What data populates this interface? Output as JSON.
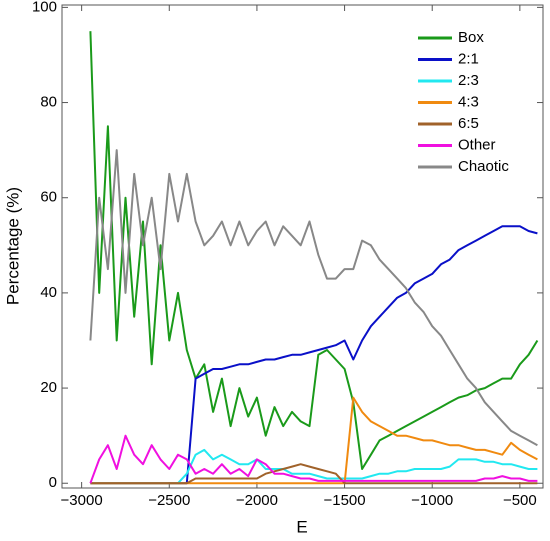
{
  "chart_data": {
    "type": "line",
    "xlabel": "E",
    "ylabel": "Percentage (%)",
    "x": [
      -2950,
      -2900,
      -2850,
      -2800,
      -2750,
      -2700,
      -2650,
      -2600,
      -2550,
      -2500,
      -2450,
      -2400,
      -2350,
      -2300,
      -2250,
      -2200,
      -2150,
      -2100,
      -2050,
      -2000,
      -1950,
      -1900,
      -1850,
      -1800,
      -1750,
      -1700,
      -1650,
      -1600,
      -1550,
      -1500,
      -1450,
      -1400,
      -1350,
      -1300,
      -1250,
      -1200,
      -1150,
      -1100,
      -1050,
      -1000,
      -950,
      -900,
      -850,
      -800,
      -750,
      -700,
      -650,
      -600,
      -550,
      -500,
      -450,
      -400
    ],
    "series": [
      {
        "name": "Box",
        "color": "#1a9a1a",
        "values": [
          95,
          40,
          75,
          30,
          60,
          35,
          55,
          25,
          50,
          30,
          40,
          28,
          22,
          25,
          15,
          22,
          12,
          20,
          14,
          18,
          10,
          16,
          12,
          15,
          13,
          12,
          27,
          28,
          26,
          24,
          17,
          3,
          6,
          9,
          10,
          11,
          12,
          13,
          14,
          15,
          16,
          17,
          18,
          18.5,
          19.5,
          20,
          21,
          22,
          22,
          25,
          27,
          30
        ]
      },
      {
        "name": "2:1",
        "color": "#0a10c8",
        "values": [
          0,
          0,
          0,
          0,
          0,
          0,
          0,
          0,
          0,
          0,
          0,
          0,
          22,
          23,
          24,
          24,
          24.5,
          25,
          25,
          25.5,
          26,
          26,
          26.5,
          27,
          27,
          27.5,
          28,
          28.5,
          29,
          30,
          26,
          30,
          33,
          35,
          37,
          39,
          40,
          42,
          43,
          44,
          46,
          47,
          49,
          50,
          51,
          52,
          53,
          54,
          54,
          54,
          53,
          52.5
        ]
      },
      {
        "name": "2:3",
        "color": "#22e8f0",
        "values": [
          0,
          0,
          0,
          0,
          0,
          0,
          0,
          0,
          0,
          0,
          0,
          2,
          6,
          7,
          5,
          6,
          5,
          4,
          4,
          5,
          3,
          3,
          3,
          2,
          2,
          2,
          1.5,
          1,
          1,
          1,
          1,
          1,
          1.5,
          2,
          2,
          2.5,
          2.5,
          3,
          3,
          3,
          3,
          3.5,
          5,
          5,
          5,
          4.5,
          4.5,
          4,
          4,
          3.5,
          3,
          3
        ]
      },
      {
        "name": "4:3",
        "color": "#f08a10",
        "values": [
          0,
          0,
          0,
          0,
          0,
          0,
          0,
          0,
          0,
          0,
          0,
          0,
          0,
          0,
          0,
          0,
          0,
          0,
          0,
          0,
          0,
          0,
          0,
          0,
          0,
          0,
          0,
          0,
          0,
          0,
          18,
          15,
          13,
          12,
          11,
          10,
          10,
          9.5,
          9,
          9,
          8.5,
          8,
          8,
          7.5,
          7,
          7,
          6.5,
          6,
          8.5,
          7,
          6,
          5
        ]
      },
      {
        "name": "6:5",
        "color": "#a0622a",
        "values": [
          0,
          0,
          0,
          0,
          0,
          0,
          0,
          0,
          0,
          0,
          0,
          0,
          1,
          1,
          1,
          1,
          1,
          1,
          1,
          1,
          2,
          2.5,
          3,
          3.5,
          4,
          3.5,
          3,
          2.5,
          2,
          0,
          0,
          0,
          0,
          0,
          0,
          0,
          0,
          0,
          0,
          0,
          0,
          0,
          0,
          0,
          0,
          0,
          0,
          0,
          0,
          0,
          0,
          0
        ]
      },
      {
        "name": "Other",
        "color": "#f010e0",
        "values": [
          0,
          5,
          8,
          3,
          10,
          6,
          4,
          8,
          5,
          3,
          6,
          5,
          2,
          3,
          2,
          4,
          2,
          3,
          1.5,
          5,
          4,
          2,
          2,
          1.5,
          1,
          1,
          0.5,
          0.5,
          0.5,
          0.5,
          0.5,
          0.5,
          0.5,
          0.5,
          0.5,
          0.5,
          0.5,
          0.5,
          0.5,
          0.5,
          0.5,
          0.5,
          0.5,
          0.5,
          0.5,
          1,
          1,
          1.5,
          1,
          1,
          0.5,
          0.5
        ]
      },
      {
        "name": "Chaotic",
        "color": "#888888",
        "values": [
          30,
          60,
          45,
          70,
          40,
          65,
          50,
          60,
          45,
          65,
          55,
          65,
          55,
          50,
          52,
          55,
          50,
          55,
          50,
          53,
          55,
          50,
          54,
          52,
          50,
          55,
          48,
          43,
          43,
          45,
          45,
          51,
          50,
          47,
          45,
          43,
          41,
          38,
          36,
          33,
          31,
          28,
          25,
          22,
          20,
          17,
          15,
          13,
          11,
          10,
          9,
          8
        ]
      }
    ],
    "xlim": [
      -3112,
      -368
    ],
    "ylim": [
      -1,
      100.5
    ],
    "xticks": [
      {
        "value": -3000,
        "label": "−3000"
      },
      {
        "value": -2500,
        "label": "−2500"
      },
      {
        "value": -2000,
        "label": "−2000"
      },
      {
        "value": -1500,
        "label": "−1500"
      },
      {
        "value": -1000,
        "label": "−1000"
      },
      {
        "value": -500,
        "label": "−500"
      }
    ],
    "yticks": [
      0,
      20,
      40,
      60,
      80,
      100
    ],
    "legend": "upper right"
  }
}
